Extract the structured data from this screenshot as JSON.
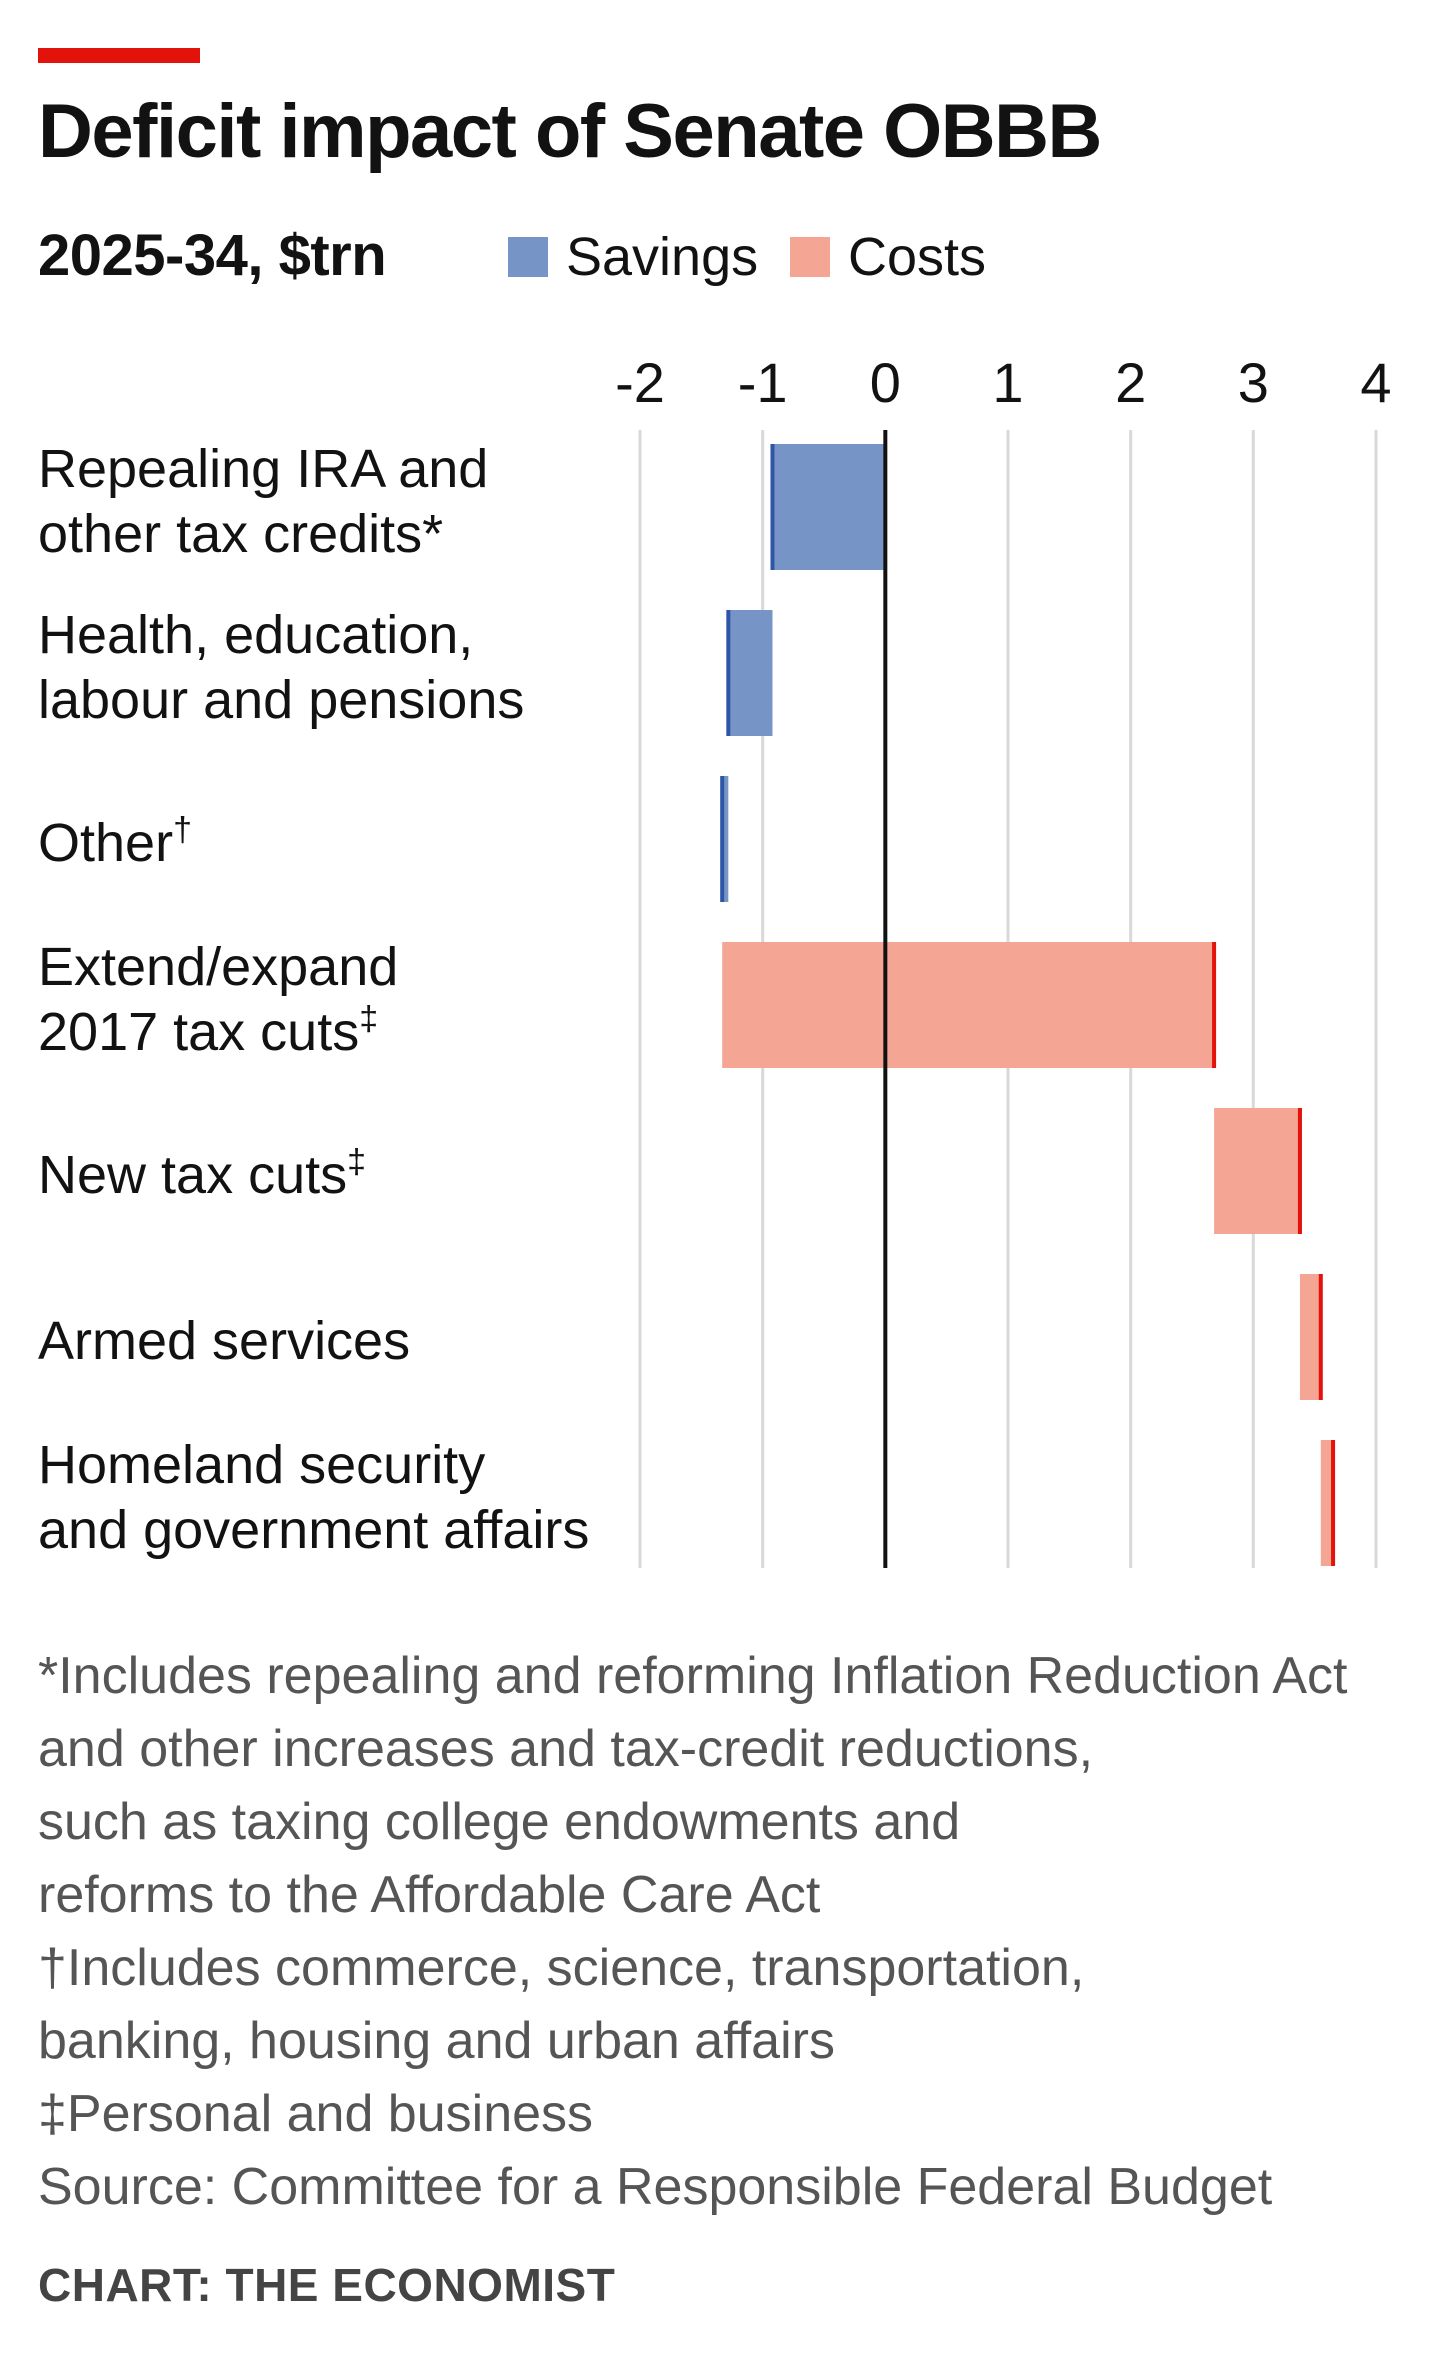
{
  "title": "Deficit impact of Senate OBBB",
  "subtitle": "2025-34, $trn",
  "legend": {
    "savings_label": "Savings",
    "costs_label": "Costs"
  },
  "colors": {
    "savings_fill": "#7695c6",
    "savings_edge": "#2f56a6",
    "costs_fill": "#f4a594",
    "costs_edge": "#e3120b",
    "accent": "#e3120b",
    "grid": "#d9d9d9",
    "zero_line": "#121212"
  },
  "chart_data": {
    "type": "bar",
    "subtype": "waterfall",
    "orientation": "horizontal",
    "xlim": [
      -2,
      4
    ],
    "x_ticks": [
      "-2",
      "-1",
      "0",
      "1",
      "2",
      "3",
      "4"
    ],
    "grid": true,
    "legend_position": "top",
    "categories": [
      {
        "line1": "Repealing IRA and",
        "line2": "other tax credits*",
        "sup": ""
      },
      {
        "line1": "Health, education,",
        "line2": "labour and pensions",
        "sup": ""
      },
      {
        "line1": "Other",
        "line2": "",
        "sup": "†"
      },
      {
        "line1": "Extend/expand",
        "line2": "2017 tax cuts",
        "sup": "‡"
      },
      {
        "line1": "New tax cuts",
        "line2": "",
        "sup": "‡"
      },
      {
        "line1": "Armed services",
        "line2": "",
        "sup": ""
      },
      {
        "line1": "Homeland security",
        "line2": "and government affairs",
        "sup": ""
      }
    ],
    "bars": [
      {
        "type": "savings",
        "start": 0,
        "end": -0.92
      },
      {
        "type": "savings",
        "start": -0.92,
        "end": -1.28
      },
      {
        "type": "savings",
        "start": -1.28,
        "end": -1.33
      },
      {
        "type": "costs",
        "start": -1.33,
        "end": 2.68
      },
      {
        "type": "costs",
        "start": 2.68,
        "end": 3.38
      },
      {
        "type": "costs",
        "start": 3.38,
        "end": 3.55
      },
      {
        "type": "costs",
        "start": 3.55,
        "end": 3.65
      }
    ]
  },
  "notes": [
    "*Includes repealing and reforming Inflation Reduction Act",
    "and other increases and tax-credit reductions,",
    "such as taxing college endowments and",
    "reforms to the Affordable Care Act",
    "†Includes commerce, science, transportation,",
    "banking, housing and urban affairs",
    "‡Personal and business",
    "Source: Committee for a Responsible Federal Budget"
  ],
  "credit": "CHART: THE ECONOMIST"
}
